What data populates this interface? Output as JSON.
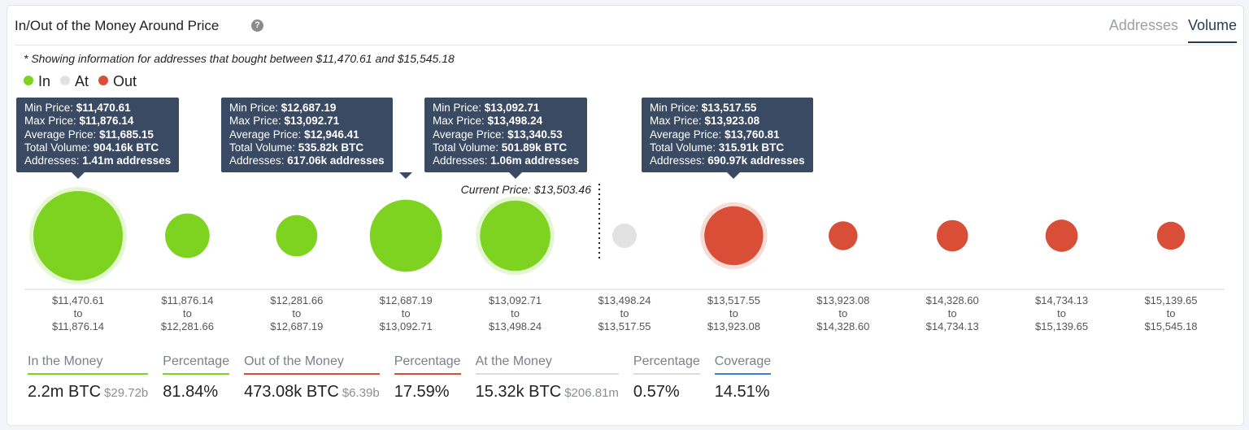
{
  "header": {
    "title": "In/Out of the Money Around Price",
    "help_icon": "question-circle-icon",
    "tabs": [
      {
        "label": "Addresses",
        "active": false
      },
      {
        "label": "Volume",
        "active": true
      }
    ]
  },
  "note": "* Showing information for addresses that bought between $11,470.61 and $15,545.18",
  "legend": [
    {
      "label": "In",
      "color": "#7ed321"
    },
    {
      "label": "At",
      "color": "#e2e2e2"
    },
    {
      "label": "Out",
      "color": "#d94e37"
    }
  ],
  "chart_data": {
    "type": "scatter",
    "subtype": "bubble",
    "current_price_label": "Current Price: $13,503.46",
    "current_price": 13503.46,
    "bins": [
      {
        "from": "$11,470.61",
        "to": "$11,876.14",
        "status": "in",
        "volume_k_btc": 904.16
      },
      {
        "from": "$11,876.14",
        "to": "$12,281.66",
        "status": "in",
        "volume_k_btc": 143.6
      },
      {
        "from": "$12,281.66",
        "to": "$12,687.19",
        "status": "in",
        "volume_k_btc": 114.5
      },
      {
        "from": "$12,687.19",
        "to": "$13,092.71",
        "status": "in",
        "volume_k_btc": 535.82
      },
      {
        "from": "$13,092.71",
        "to": "$13,498.24",
        "status": "in",
        "volume_k_btc": 501.89
      },
      {
        "from": "$13,498.24",
        "to": "$13,517.55",
        "status": "at",
        "volume_k_btc": 15.32
      },
      {
        "from": "$13,517.55",
        "to": "$13,923.08",
        "status": "out",
        "volume_k_btc": 315.91
      },
      {
        "from": "$13,923.08",
        "to": "$14,328.60",
        "status": "out",
        "volume_k_btc": 32.8
      },
      {
        "from": "$14,328.60",
        "to": "$14,734.13",
        "status": "out",
        "volume_k_btc": 45.4
      },
      {
        "from": "$14,734.13",
        "to": "$15,139.65",
        "status": "out",
        "volume_k_btc": 50.0
      },
      {
        "from": "$15,139.65",
        "to": "$15,545.18",
        "status": "out",
        "volume_k_btc": 29.0
      }
    ],
    "to_word": "to",
    "colors": {
      "in": "#7ed321",
      "at": "#e2e2e2",
      "out": "#d94e37"
    }
  },
  "tooltips": [
    {
      "bin": 0,
      "min": "$11,470.61",
      "max": "$11,876.14",
      "avg": "$11,685.15",
      "vol": "904.16k BTC",
      "addr": "1.41m addresses"
    },
    {
      "bin": 3,
      "min": "$12,687.19",
      "max": "$13,092.71",
      "avg": "$12,946.41",
      "vol": "535.82k BTC",
      "addr": "617.06k addresses"
    },
    {
      "bin": 4,
      "min": "$13,092.71",
      "max": "$13,498.24",
      "avg": "$13,340.53",
      "vol": "501.89k BTC",
      "addr": "1.06m addresses"
    },
    {
      "bin": 6,
      "min": "$13,517.55",
      "max": "$13,923.08",
      "avg": "$13,760.81",
      "vol": "315.91k BTC",
      "addr": "690.97k addresses"
    }
  ],
  "tooltip_labels": {
    "min": "Min Price: ",
    "max": "Max Price: ",
    "avg": "Average Price: ",
    "vol": "Total Volume: ",
    "addr": "Addresses: "
  },
  "stats": [
    {
      "label": "In the Money",
      "value": "2.2m BTC",
      "sub": "$29.72b",
      "color": "#7ed321"
    },
    {
      "label": "Percentage",
      "value": "81.84%",
      "color": "#7ed321"
    },
    {
      "label": "Out of the Money",
      "value": "473.08k BTC",
      "sub": "$6.39b",
      "color": "#d94e37"
    },
    {
      "label": "Percentage",
      "value": "17.59%",
      "color": "#d94e37"
    },
    {
      "label": "At the Money",
      "value": "15.32k BTC",
      "sub": "$206.81m",
      "color": "#dddddd"
    },
    {
      "label": "Percentage",
      "value": "0.57%",
      "color": "#dddddd"
    },
    {
      "label": "Coverage",
      "value": "14.51%",
      "color": "#3b7ddd"
    }
  ]
}
